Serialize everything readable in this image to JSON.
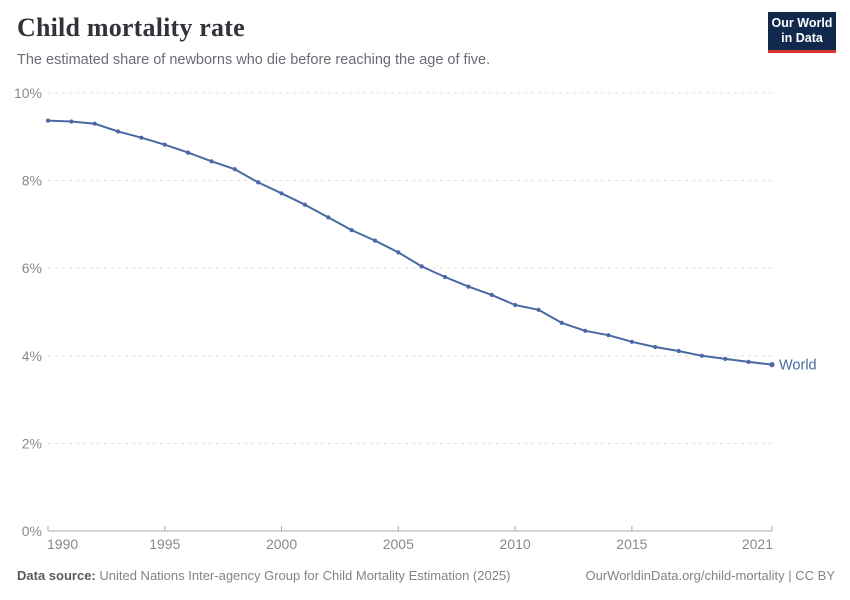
{
  "header": {
    "title": "Child mortality rate",
    "subtitle": "The estimated share of newborns who die before reaching the age of five."
  },
  "logo": {
    "line1": "Our World",
    "line2": "in Data",
    "bg_color": "#12294e",
    "accent_color": "#d7352e"
  },
  "chart_data": {
    "type": "line",
    "title": "Child mortality rate",
    "xlabel": "",
    "ylabel": "",
    "xlim": [
      1990,
      2021
    ],
    "ylim": [
      0,
      10
    ],
    "grid": "horizontal-dashed",
    "x_ticks": [
      {
        "year": 1990,
        "label": "1990"
      },
      {
        "year": 1995,
        "label": "1995"
      },
      {
        "year": 2000,
        "label": "2000"
      },
      {
        "year": 2005,
        "label": "2005"
      },
      {
        "year": 2010,
        "label": "2010"
      },
      {
        "year": 2015,
        "label": "2015"
      },
      {
        "year": 2021,
        "label": "2021"
      }
    ],
    "y_ticks": [
      {
        "value": 0,
        "label": "0%"
      },
      {
        "value": 2,
        "label": "2%"
      },
      {
        "value": 4,
        "label": "4%"
      },
      {
        "value": 6,
        "label": "6%"
      },
      {
        "value": 8,
        "label": "8%"
      },
      {
        "value": 10,
        "label": "10%"
      }
    ],
    "series": [
      {
        "name": "World",
        "color": "#4a69a3",
        "end_label": "World",
        "years": [
          1990,
          1991,
          1992,
          1993,
          1994,
          1995,
          1996,
          1997,
          1998,
          1999,
          2000,
          2001,
          2002,
          2003,
          2004,
          2005,
          2006,
          2007,
          2008,
          2009,
          2010,
          2011,
          2012,
          2013,
          2014,
          2015,
          2016,
          2017,
          2018,
          2019,
          2020,
          2021
        ],
        "values": [
          9.37,
          9.35,
          9.3,
          9.12,
          8.98,
          8.82,
          8.64,
          8.44,
          8.26,
          7.96,
          7.71,
          7.45,
          7.16,
          6.87,
          6.63,
          6.36,
          6.04,
          5.8,
          5.58,
          5.39,
          5.16,
          5.05,
          4.75,
          4.57,
          4.47,
          4.32,
          4.2,
          4.11,
          4.0,
          3.93,
          3.86,
          3.8
        ]
      }
    ],
    "colors": {
      "gridline": "#e0e0e0",
      "axis": "#a8a8a8",
      "tick_label": "#8a888f"
    }
  },
  "footer": {
    "source_label": "Data source:",
    "source_text": " United Nations Inter-agency Group for Child Mortality Estimation (2025)",
    "link_text": "OurWorldinData.org/child-mortality | CC BY"
  }
}
